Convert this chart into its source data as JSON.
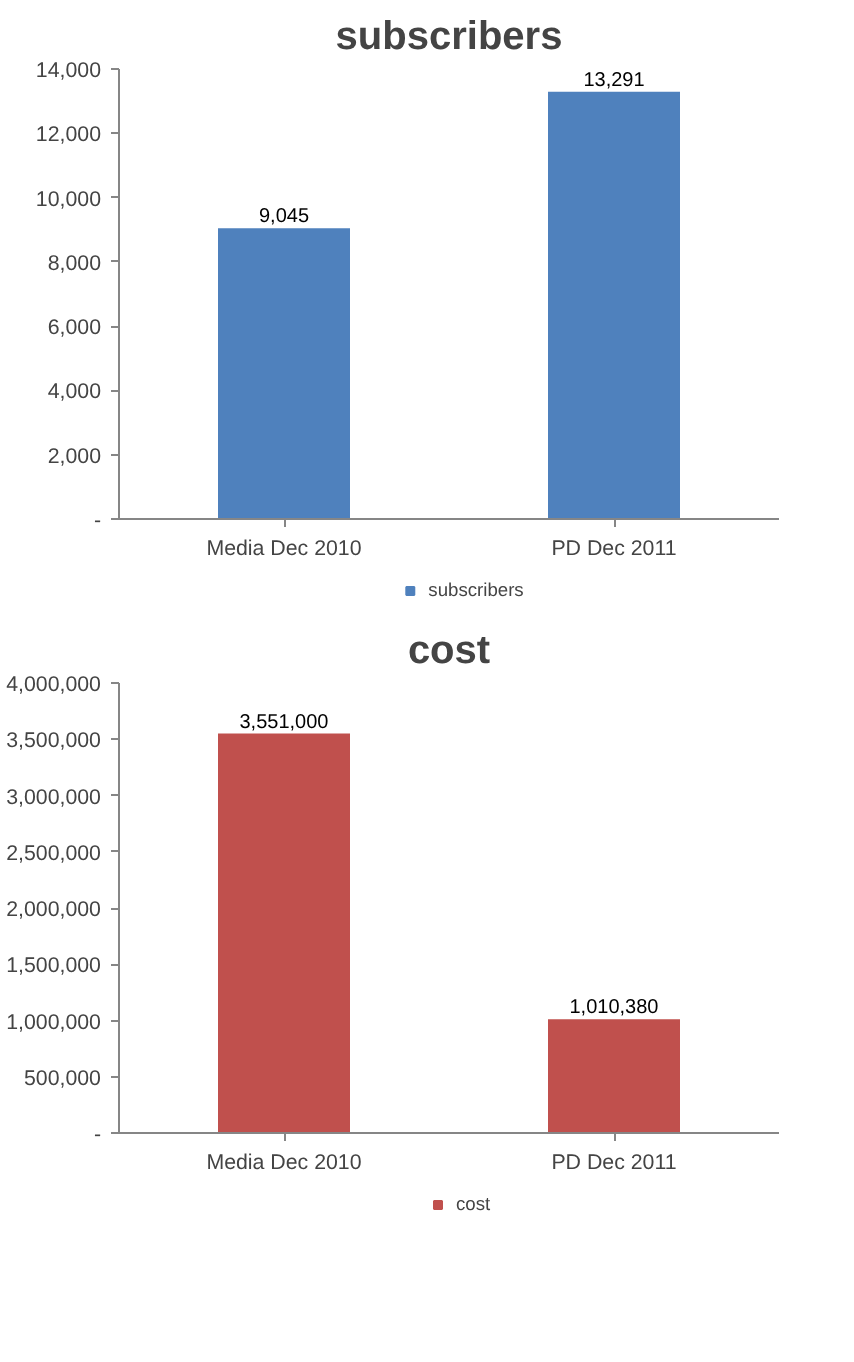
{
  "chart_data": [
    {
      "type": "bar",
      "title": "subscribers",
      "categories": [
        "Media Dec 2010",
        "PD Dec 2011"
      ],
      "series": [
        {
          "name": "subscribers",
          "color": "#4f81bd",
          "values": [
            9045,
            13291
          ],
          "value_labels": [
            "9,045",
            "13,291"
          ]
        }
      ],
      "ylim": [
        0,
        14000
      ],
      "yticks": [
        {
          "value": 0,
          "label": "-"
        },
        {
          "value": 2000,
          "label": "2,000"
        },
        {
          "value": 4000,
          "label": "4,000"
        },
        {
          "value": 6000,
          "label": "6,000"
        },
        {
          "value": 8000,
          "label": "8,000"
        },
        {
          "value": 10000,
          "label": "10,000"
        },
        {
          "value": 12000,
          "label": "12,000"
        },
        {
          "value": 14000,
          "label": "14,000"
        }
      ],
      "legend": "bottom",
      "grid": false
    },
    {
      "type": "bar",
      "title": "cost",
      "categories": [
        "Media Dec 2010",
        "PD Dec 2011"
      ],
      "series": [
        {
          "name": "cost",
          "color": "#c0504d",
          "values": [
            3551000,
            1010380
          ],
          "value_labels": [
            "3,551,000",
            "1,010,380"
          ]
        }
      ],
      "ylim": [
        0,
        4000000
      ],
      "yticks": [
        {
          "value": 0,
          "label": "-"
        },
        {
          "value": 500000,
          "label": "500,000"
        },
        {
          "value": 1000000,
          "label": "1,000,000"
        },
        {
          "value": 1500000,
          "label": "1,500,000"
        },
        {
          "value": 2000000,
          "label": "2,000,000"
        },
        {
          "value": 2500000,
          "label": "2,500,000"
        },
        {
          "value": 3000000,
          "label": "3,000,000"
        },
        {
          "value": 3500000,
          "label": "3,500,000"
        },
        {
          "value": 4000000,
          "label": "4,000,000"
        }
      ],
      "legend": "bottom",
      "grid": false
    }
  ]
}
